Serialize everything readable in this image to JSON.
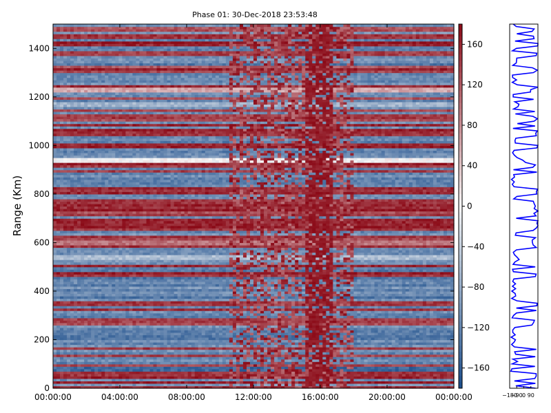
{
  "chart_data": [
    {
      "type": "heatmap",
      "title": "Phase 01: 30-Dec-2018 23:53:48",
      "ylabel": "Range (Km)",
      "xlabel": "",
      "x_ticks": [
        "00:00:00",
        "04:00:00",
        "08:00:00",
        "12:00:00",
        "16:00:00",
        "20:00:00",
        "00:00:00"
      ],
      "x_range_hours": [
        0,
        24
      ],
      "y_ticks": [
        0,
        200,
        400,
        600,
        800,
        1000,
        1200,
        1400
      ],
      "ylim": [
        0,
        1500
      ],
      "colorbar": {
        "ticks": [
          160,
          120,
          80,
          40,
          0,
          -40,
          -80,
          -120,
          -160
        ],
        "range": [
          -180,
          180
        ],
        "colormap": "RdBu_r"
      },
      "colors": {
        "low": "#1a4c8a",
        "mid": "#f7f7f7",
        "high": "#8b0a17"
      },
      "bands": [
        {
          "range": 60,
          "phase": 150
        },
        {
          "range": 80,
          "phase": -150
        },
        {
          "range": 280,
          "phase": 140
        },
        {
          "range": 540,
          "phase": -60
        },
        {
          "range": 600,
          "phase": 100
        },
        {
          "range": 680,
          "phase": 160
        },
        {
          "range": 770,
          "phase": 150
        },
        {
          "range": 940,
          "phase": 0
        },
        {
          "range": 1050,
          "phase": 150
        },
        {
          "range": 1170,
          "phase": -70
        },
        {
          "range": 1230,
          "phase": 60
        },
        {
          "range": 1380,
          "phase": 140
        },
        {
          "range": 1450,
          "phase": 150
        }
      ]
    },
    {
      "type": "line",
      "x_ticks": [
        "-180",
        "-90",
        "0",
        "90"
      ],
      "xlim": [
        -180,
        180
      ],
      "series_color": "#0000ff"
    }
  ]
}
